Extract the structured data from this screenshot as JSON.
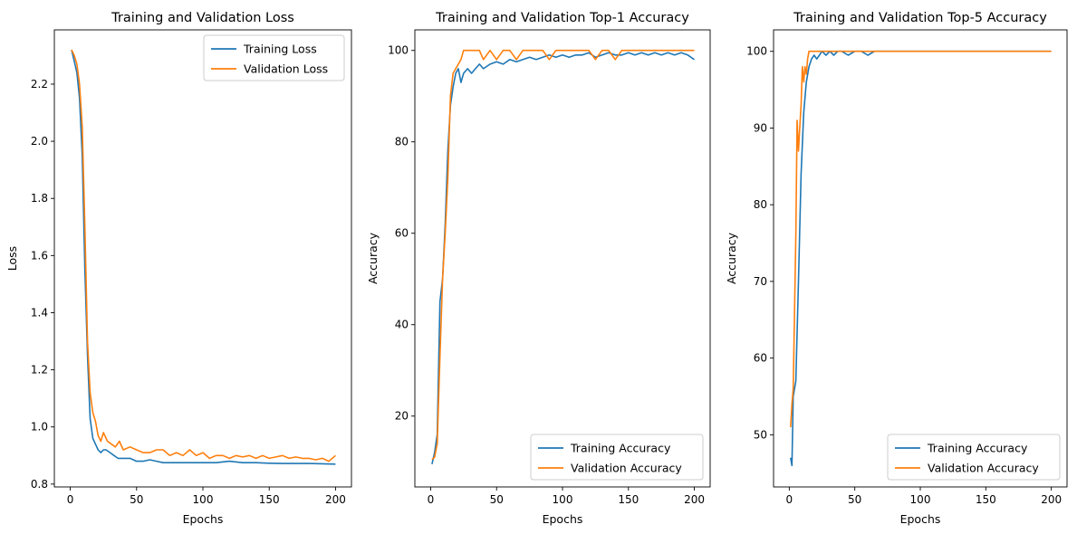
{
  "chart_data": [
    {
      "type": "line",
      "title": "Training and Validation Loss",
      "xlabel": "Epochs",
      "ylabel": "Loss",
      "xlim": [
        -12,
        212
      ],
      "ylim": [
        0.79,
        2.39
      ],
      "xticks": [
        0,
        50,
        100,
        150,
        200
      ],
      "yticks": [
        0.8,
        1.0,
        1.2,
        1.4,
        1.6,
        1.8,
        2.0,
        2.2
      ],
      "ytick_decimals": 1,
      "grid": false,
      "legend_position": "upper right",
      "colors": [
        "#1f77b4",
        "#ff7f0e"
      ],
      "series": [
        {
          "name": "Training Loss",
          "x": [
            1,
            3,
            5,
            7,
            9,
            11,
            13,
            15,
            17,
            19,
            21,
            23,
            25,
            27,
            30,
            33,
            36,
            40,
            45,
            50,
            55,
            60,
            65,
            70,
            80,
            90,
            100,
            110,
            120,
            130,
            140,
            150,
            160,
            170,
            180,
            190,
            200
          ],
          "y": [
            2.32,
            2.28,
            2.24,
            2.15,
            1.95,
            1.55,
            1.25,
            1.03,
            0.96,
            0.94,
            0.92,
            0.91,
            0.92,
            0.92,
            0.91,
            0.9,
            0.89,
            0.89,
            0.89,
            0.88,
            0.88,
            0.885,
            0.88,
            0.875,
            0.875,
            0.875,
            0.875,
            0.875,
            0.88,
            0.875,
            0.875,
            0.873,
            0.872,
            0.872,
            0.872,
            0.871,
            0.87
          ]
        },
        {
          "name": "Validation Loss",
          "x": [
            1,
            3,
            5,
            7,
            9,
            11,
            13,
            15,
            17,
            19,
            21,
            23,
            25,
            28,
            31,
            34,
            37,
            40,
            45,
            50,
            55,
            60,
            65,
            70,
            75,
            80,
            85,
            90,
            95,
            100,
            105,
            110,
            115,
            120,
            125,
            130,
            135,
            140,
            145,
            150,
            155,
            160,
            165,
            170,
            175,
            180,
            185,
            190,
            195,
            200
          ],
          "y": [
            2.32,
            2.3,
            2.27,
            2.2,
            2.05,
            1.7,
            1.3,
            1.12,
            1.05,
            1.02,
            0.97,
            0.95,
            0.98,
            0.95,
            0.94,
            0.93,
            0.95,
            0.92,
            0.93,
            0.92,
            0.91,
            0.91,
            0.92,
            0.92,
            0.9,
            0.91,
            0.9,
            0.92,
            0.9,
            0.91,
            0.89,
            0.9,
            0.9,
            0.89,
            0.9,
            0.895,
            0.9,
            0.89,
            0.9,
            0.89,
            0.895,
            0.9,
            0.89,
            0.895,
            0.89,
            0.89,
            0.885,
            0.89,
            0.88,
            0.9
          ]
        }
      ]
    },
    {
      "type": "line",
      "title": "Training and Validation Top-1 Accuracy",
      "xlabel": "Epochs",
      "ylabel": "Accuracy",
      "xlim": [
        -12,
        212
      ],
      "ylim": [
        4.5,
        104.5
      ],
      "xticks": [
        0,
        50,
        100,
        150,
        200
      ],
      "yticks": [
        20,
        40,
        60,
        80,
        100
      ],
      "ytick_decimals": 0,
      "grid": false,
      "legend_position": "lower right",
      "colors": [
        "#1f77b4",
        "#ff7f0e"
      ],
      "series": [
        {
          "name": "Training Accuracy",
          "x": [
            1,
            3,
            5,
            7,
            9,
            11,
            13,
            15,
            17,
            19,
            21,
            23,
            25,
            28,
            31,
            34,
            37,
            40,
            45,
            50,
            55,
            60,
            65,
            70,
            75,
            80,
            85,
            90,
            95,
            100,
            105,
            110,
            115,
            120,
            125,
            130,
            135,
            140,
            145,
            150,
            155,
            160,
            165,
            170,
            175,
            180,
            185,
            190,
            195,
            200
          ],
          "y": [
            9.5,
            12,
            16,
            45,
            50,
            62,
            78,
            88,
            92,
            95,
            96,
            93,
            95,
            96,
            95,
            96,
            97,
            96,
            97,
            97.5,
            97,
            98,
            97.5,
            98,
            98.5,
            98,
            98.5,
            99,
            98.5,
            99,
            98.5,
            99,
            99,
            99.5,
            98.5,
            99,
            99.5,
            99,
            99,
            99.5,
            99,
            99.5,
            99,
            99.5,
            99,
            99.5,
            99,
            99.5,
            99,
            98
          ]
        },
        {
          "name": "Validation Accuracy",
          "x": [
            1,
            3,
            5,
            7,
            9,
            11,
            13,
            15,
            17,
            19,
            21,
            23,
            25,
            28,
            31,
            34,
            37,
            40,
            45,
            50,
            55,
            60,
            65,
            70,
            75,
            80,
            85,
            90,
            95,
            100,
            105,
            110,
            115,
            120,
            125,
            130,
            135,
            140,
            145,
            150,
            155,
            160,
            165,
            170,
            175,
            180,
            185,
            190,
            195,
            200
          ],
          "y": [
            10.5,
            11,
            14,
            33,
            50,
            60,
            72,
            90,
            95,
            96,
            97,
            98,
            100,
            100,
            100,
            100,
            100,
            98,
            100,
            98,
            100,
            100,
            98,
            100,
            100,
            100,
            100,
            98,
            100,
            100,
            100,
            100,
            100,
            100,
            98,
            100,
            100,
            98,
            100,
            100,
            100,
            100,
            100,
            100,
            100,
            100,
            100,
            100,
            100,
            100
          ]
        }
      ]
    },
    {
      "type": "line",
      "title": "Training and Validation Top-5 Accuracy",
      "xlabel": "Epochs",
      "ylabel": "Accuracy",
      "xlim": [
        -12,
        212
      ],
      "ylim": [
        43.2,
        102.8
      ],
      "xticks": [
        0,
        50,
        100,
        150,
        200
      ],
      "yticks": [
        50,
        60,
        70,
        80,
        90,
        100
      ],
      "ytick_decimals": 0,
      "grid": false,
      "legend_position": "lower right",
      "colors": [
        "#1f77b4",
        "#ff7f0e"
      ],
      "series": [
        {
          "name": "Training Accuracy",
          "x": [
            1,
            2,
            3,
            5,
            7,
            9,
            11,
            13,
            15,
            17,
            19,
            21,
            23,
            25,
            28,
            31,
            34,
            37,
            40,
            45,
            50,
            55,
            60,
            65,
            70,
            80,
            90,
            100,
            110,
            120,
            130,
            140,
            150,
            160,
            170,
            180,
            190,
            200
          ],
          "y": [
            47,
            46,
            55,
            57,
            70,
            84,
            92,
            96,
            98,
            99,
            99.5,
            99,
            99.5,
            100,
            99.5,
            100,
            99.5,
            100,
            100,
            99.5,
            100,
            100,
            99.5,
            100,
            100,
            100,
            100,
            100,
            100,
            100,
            100,
            100,
            100,
            100,
            100,
            100,
            100,
            100
          ]
        },
        {
          "name": "Validation Accuracy",
          "x": [
            1,
            2,
            3,
            5,
            6,
            7,
            8,
            9,
            10,
            11,
            12,
            13,
            14,
            15,
            17,
            20,
            30,
            50,
            100,
            150,
            200
          ],
          "y": [
            51,
            54,
            56,
            76,
            91,
            87,
            90,
            93,
            98,
            96,
            98,
            97,
            99,
            100,
            100,
            100,
            100,
            100,
            100,
            100,
            100
          ]
        }
      ]
    }
  ]
}
